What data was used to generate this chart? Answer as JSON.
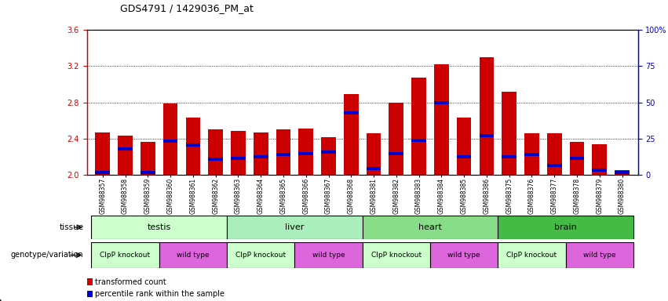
{
  "title": "GDS4791 / 1429036_PM_at",
  "samples": [
    "GSM988357",
    "GSM988358",
    "GSM988359",
    "GSM988360",
    "GSM988361",
    "GSM988362",
    "GSM988363",
    "GSM988364",
    "GSM988365",
    "GSM988366",
    "GSM988367",
    "GSM988368",
    "GSM988381",
    "GSM988382",
    "GSM988383",
    "GSM988384",
    "GSM988385",
    "GSM988386",
    "GSM988375",
    "GSM988376",
    "GSM988377",
    "GSM988378",
    "GSM988379",
    "GSM988380"
  ],
  "bar_values": [
    2.47,
    2.43,
    2.36,
    2.79,
    2.63,
    2.5,
    2.48,
    2.47,
    2.5,
    2.51,
    2.41,
    2.89,
    2.46,
    2.8,
    3.07,
    3.22,
    2.63,
    3.3,
    2.92,
    2.46,
    2.46,
    2.36,
    2.34,
    2.05
  ],
  "percentile_values": [
    2.02,
    2.28,
    2.02,
    2.37,
    2.33,
    2.17,
    2.18,
    2.2,
    2.22,
    2.23,
    2.25,
    2.68,
    2.07,
    2.23,
    2.38,
    2.8,
    2.2,
    2.43,
    2.2,
    2.22,
    2.1,
    2.18,
    2.05,
    2.02
  ],
  "ymin": 2.0,
  "ymax": 3.6,
  "yticks_left": [
    2.0,
    2.4,
    2.8,
    3.2,
    3.6
  ],
  "yticks_right_pct": [
    0,
    25,
    50,
    75,
    100
  ],
  "yticks_right_labels": [
    "0",
    "25",
    "50",
    "75",
    "100%"
  ],
  "bar_color": "#cc0000",
  "marker_color": "#0000cc",
  "bar_width": 0.65,
  "tissue_colors": [
    "#ccffcc",
    "#aaeebb",
    "#88dd88",
    "#44bb44"
  ],
  "tissue_labels": [
    "testis",
    "liver",
    "heart",
    "brain"
  ],
  "tissue_starts": [
    0,
    6,
    12,
    18
  ],
  "tissue_ends": [
    6,
    12,
    18,
    24
  ],
  "geno_labels": [
    "ClpP knockout",
    "wild type",
    "ClpP knockout",
    "wild type",
    "ClpP knockout",
    "wild type",
    "ClpP knockout",
    "wild type"
  ],
  "geno_starts": [
    0,
    3,
    6,
    9,
    12,
    15,
    18,
    21
  ],
  "geno_ends": [
    3,
    6,
    9,
    12,
    15,
    18,
    21,
    24
  ],
  "geno_colors": [
    "#ccffcc",
    "#dd66dd",
    "#ccffcc",
    "#dd66dd",
    "#ccffcc",
    "#dd66dd",
    "#ccffcc",
    "#dd66dd"
  ],
  "legend_items": [
    {
      "label": "transformed count",
      "color": "#cc0000"
    },
    {
      "label": "percentile rank within the sample",
      "color": "#0000cc"
    }
  ],
  "left_color": "#cc0000",
  "right_color": "#0000cc",
  "bg_color": "#ffffff"
}
